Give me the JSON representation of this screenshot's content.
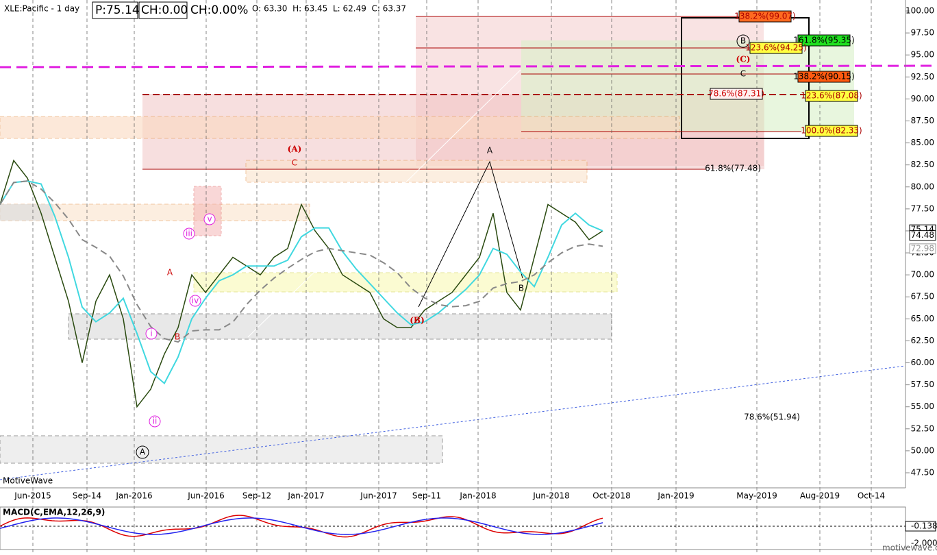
{
  "header": {
    "symbol": "XLE:Pacific - 1 day",
    "price": "P:75.14",
    "change": "CH:0.00",
    "change_pct": "CH:0.00%",
    "ohlc": "O: 63.30  H: 63.45  L: 62.49  C: 63.37"
  },
  "price_axis": {
    "ylim": [
      47.5,
      100
    ],
    "ticks": [
      {
        "value": 100,
        "label": "100.00"
      },
      {
        "value": 97.5,
        "label": "97.50"
      },
      {
        "value": 95,
        "label": "95.00"
      },
      {
        "value": 92.5,
        "label": "92.50"
      },
      {
        "value": 90,
        "label": "90.00"
      },
      {
        "value": 87.5,
        "label": "87.50"
      },
      {
        "value": 85,
        "label": "85.00"
      },
      {
        "value": 82.5,
        "label": "82.50"
      },
      {
        "value": 80,
        "label": "80.00"
      },
      {
        "value": 77.5,
        "label": "77.50"
      },
      {
        "value": 75,
        "label": "75.00"
      },
      {
        "value": 72.5,
        "label": "72.50"
      },
      {
        "value": 70,
        "label": "70.00"
      },
      {
        "value": 67.5,
        "label": "67.50"
      },
      {
        "value": 65,
        "label": "65.00"
      },
      {
        "value": 62.5,
        "label": "62.50"
      },
      {
        "value": 60,
        "label": "60.00"
      },
      {
        "value": 57.5,
        "label": "57.50"
      },
      {
        "value": 55,
        "label": "55.00"
      },
      {
        "value": 52.5,
        "label": "52.50"
      },
      {
        "value": 50,
        "label": "50.00"
      },
      {
        "value": 47.5,
        "label": "47.50"
      }
    ],
    "tags": [
      {
        "value": 75.14,
        "label": "75.14"
      },
      {
        "value": 74.48,
        "label": "74.48"
      },
      {
        "value": 72.98,
        "label": "72.98"
      }
    ]
  },
  "time_axis": {
    "labels": [
      "Jun-2015",
      "Sep-14",
      "Jan-2016",
      "Jun-2016",
      "Sep-12",
      "Jan-2017",
      "Jun-2017",
      "Sep-11",
      "Jan-2018",
      "Jun-2018",
      "Oct-2018",
      "Jan-2019",
      "May-2019",
      "Aug-2019",
      "Oct-14"
    ]
  },
  "price_series": [
    78,
    83,
    81,
    77,
    72,
    67,
    60,
    67,
    70,
    65,
    55,
    57,
    61,
    64,
    70,
    68,
    70,
    72,
    71,
    70,
    72,
    73,
    78,
    75,
    73,
    70,
    69,
    68,
    65,
    64,
    64,
    66,
    67,
    68,
    70,
    72,
    77,
    68,
    66,
    72,
    78,
    77,
    76,
    74,
    75
  ],
  "annotations": [
    "(A)",
    "C",
    "A",
    "B",
    "(B)",
    "(C)",
    "B",
    "C",
    "A",
    "B",
    "A",
    "61.8%(77.48)",
    "78.6%(51.94)",
    "138.2%(99.07)",
    "161.8%(95.35)",
    "123.6%(94.25)",
    "138.2%(90.15)",
    "78.6%(87.31)",
    "123.6%(87.08)",
    "100.0%(82.33)",
    "i",
    "ii",
    "iii",
    "iv",
    "v"
  ],
  "watermark": "MotiveWave",
  "macd": {
    "title": "MACD(C,EMA,12,26,9)",
    "value": "-0.138",
    "low": "-2.000",
    "site": "motivewave.com"
  }
}
